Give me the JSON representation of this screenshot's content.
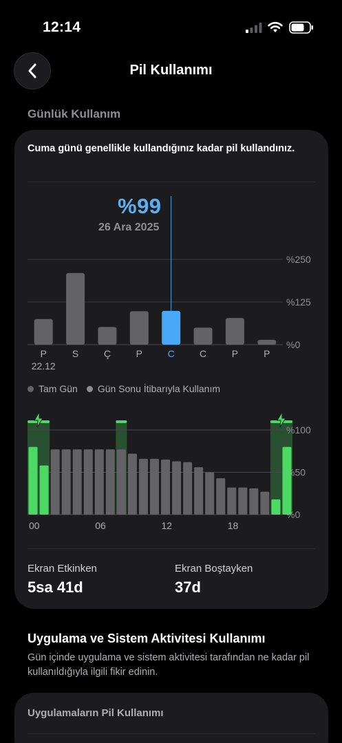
{
  "status_bar": {
    "time": "12:14"
  },
  "nav": {
    "title": "Pil Kullanımı"
  },
  "daily": {
    "section_header": "Günlük Kullanım",
    "description": "Cuma günü genellikle kullandığınız kadar pil kullandınız.",
    "selected": {
      "value": "%99",
      "date": "26 Ara 2025"
    }
  },
  "legend": {
    "full_day": "Tam Gün",
    "end_of_day": "Gün Sonu İtibarıyla Kullanım"
  },
  "stats": {
    "screen_on_label": "Ekran Etkinken",
    "screen_on_value": "5sa 41d",
    "screen_off_label": "Ekran Boştayken",
    "screen_off_value": "37d"
  },
  "activity": {
    "title": "Uygulama ve Sistem Aktivitesi Kullanımı",
    "description": "Gün içinde uygulama ve sistem aktivitesi tarafından ne kadar pil kullanıldığıyla ilgili fikir edinin.",
    "apps_card_title": "Uygulamaların Pil Kullanımı"
  },
  "colors": {
    "accent": "#4aa8f8",
    "bar_gray": "#636366",
    "green": "#4cd964",
    "card_bg": "#1c1c1e"
  },
  "chart_data": [
    {
      "type": "bar",
      "categories": [
        "P",
        "S",
        "Ç",
        "P",
        "C",
        "C",
        "P",
        "P"
      ],
      "sub_labels": [
        "22.12",
        "",
        "",
        "",
        "",
        "",
        "",
        ""
      ],
      "values": [
        75,
        210,
        52,
        98,
        99,
        50,
        78,
        14
      ],
      "selected_index": 4,
      "ytick_labels": [
        "%250",
        "%125",
        "%0"
      ],
      "ylim": [
        0,
        250
      ],
      "grid": true
    },
    {
      "type": "bar",
      "x_ticks": [
        "00",
        "06",
        "12",
        "18"
      ],
      "ytick_labels": [
        "%100",
        "%50",
        "%0"
      ],
      "ylim": [
        0,
        100
      ],
      "values_percent": [
        80,
        58,
        77,
        77,
        77,
        77,
        77,
        77,
        77,
        72,
        66,
        66,
        65,
        63,
        62,
        56,
        50,
        43,
        32,
        32,
        31,
        27,
        18,
        80
      ],
      "charging_hours": [
        0,
        1,
        8,
        22,
        23
      ],
      "grid": true
    }
  ]
}
